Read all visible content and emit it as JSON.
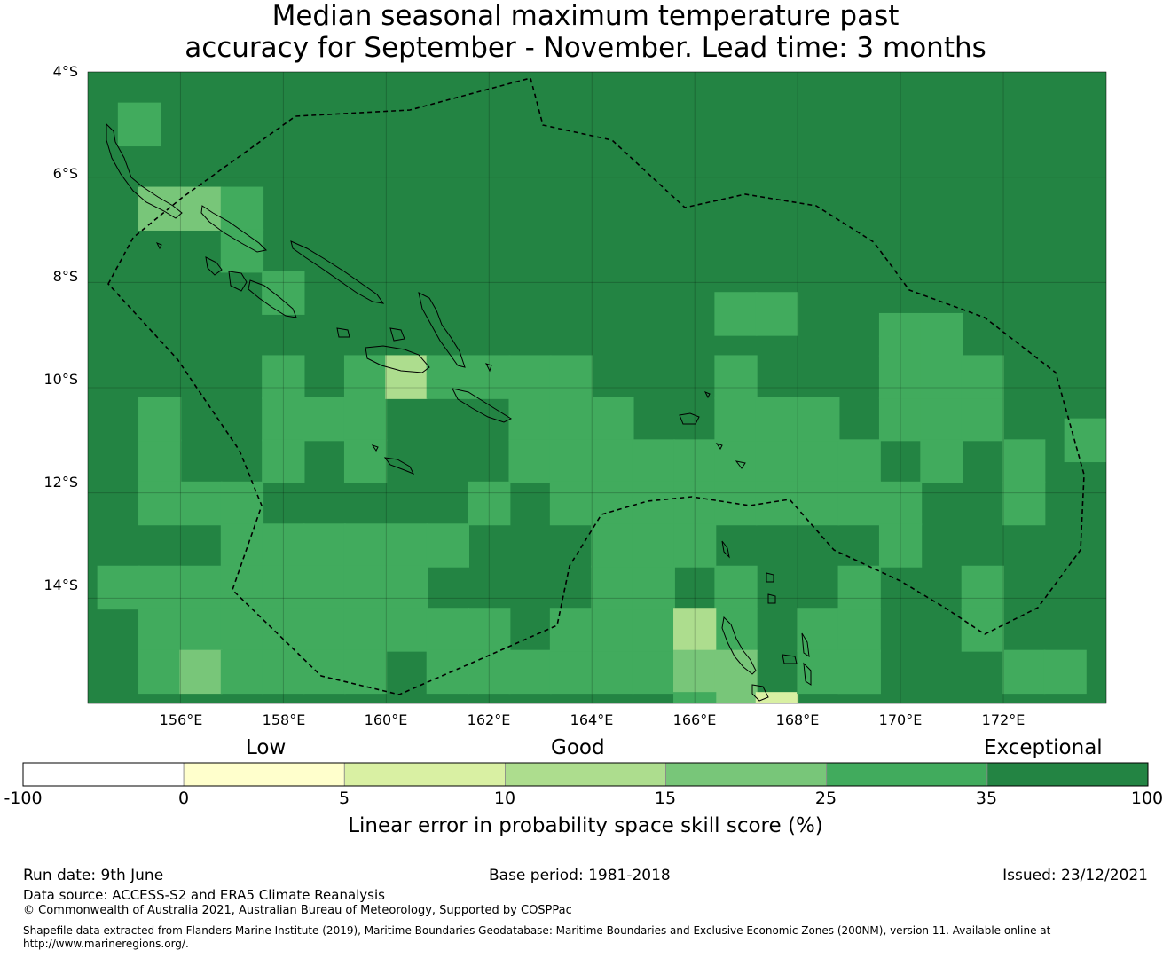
{
  "title": {
    "line1": "Median seasonal maximum temperature past",
    "line2": "accuracy for September - November. Lead time: 3 months"
  },
  "axes": {
    "lat_labels": [
      "4°S",
      "6°S",
      "8°S",
      "10°S",
      "12°S",
      "14°S"
    ],
    "lon_labels": [
      "156°E",
      "158°E",
      "160°E",
      "162°E",
      "164°E",
      "166°E",
      "168°E",
      "170°E",
      "172°E"
    ]
  },
  "colorbar": {
    "categories": [
      "Low",
      "Good",
      "Exceptional"
    ],
    "ticks": [
      "-100",
      "0",
      "5",
      "10",
      "15",
      "25",
      "35",
      "100"
    ],
    "colors": [
      "#ffffff",
      "#ffffcc",
      "#d9f0a3",
      "#addd8e",
      "#78c679",
      "#41ab5d",
      "#238443"
    ],
    "title": "Linear error in probability space skill score (%)"
  },
  "footer": {
    "run_date": "Run date: 9th June",
    "base_period": "Base period: 1981-2018",
    "issued": "Issued: 23/12/2021",
    "data_source": "Data source: ACCESS-S2 and ERA5 Climate Reanalysis",
    "copyright": "© Commonwealth of Australia 2021, Australian Bureau of Meteorology, Supported by COSPPac",
    "shapefile_1": "Shapefile data extracted from Flanders Marine Institute (2019), Maritime Boundaries Geodatabase: Maritime Boundaries and Exclusive Economic Zones (200NM), version 11. Available online at",
    "shapefile_2": "http://www.marineregions.org/."
  },
  "map_data": {
    "bounds": {
      "lon_min": 154.2,
      "lon_max": 174.0,
      "lat_min": -16.0,
      "lat_max": -4.0
    },
    "cell_size_deg": 0.833,
    "base_class": 6,
    "cells": [
      [
        155.2,
        -5.0,
        5
      ],
      [
        155.6,
        -6.6,
        4
      ],
      [
        156.4,
        -6.6,
        4
      ],
      [
        157.2,
        -6.6,
        5
      ],
      [
        157.2,
        -7.4,
        5
      ],
      [
        158.0,
        -8.2,
        5
      ],
      [
        158.0,
        -9.8,
        5
      ],
      [
        158.0,
        -10.6,
        5
      ],
      [
        158.0,
        -11.4,
        5
      ],
      [
        158.8,
        -10.6,
        5
      ],
      [
        159.6,
        -9.8,
        5
      ],
      [
        159.6,
        -10.6,
        5
      ],
      [
        159.6,
        -11.4,
        5
      ],
      [
        160.4,
        -9.8,
        3
      ],
      [
        161.2,
        -9.8,
        5
      ],
      [
        162.0,
        -9.8,
        5
      ],
      [
        162.8,
        -9.8,
        5
      ],
      [
        163.6,
        -9.8,
        5
      ],
      [
        162.8,
        -10.6,
        5
      ],
      [
        163.6,
        -10.6,
        5
      ],
      [
        164.4,
        -10.6,
        5
      ],
      [
        162.8,
        -11.4,
        5
      ],
      [
        163.6,
        -11.4,
        5
      ],
      [
        164.4,
        -11.4,
        5
      ],
      [
        165.2,
        -11.4,
        5
      ],
      [
        166.0,
        -11.4,
        5
      ],
      [
        166.8,
        -11.4,
        5
      ],
      [
        167.6,
        -11.4,
        5
      ],
      [
        168.4,
        -11.4,
        5
      ],
      [
        169.2,
        -11.4,
        5
      ],
      [
        163.6,
        -12.2,
        5
      ],
      [
        164.4,
        -12.2,
        5
      ],
      [
        165.2,
        -12.2,
        5
      ],
      [
        166.0,
        -12.2,
        5
      ],
      [
        166.8,
        -12.2,
        5
      ],
      [
        167.6,
        -12.2,
        5
      ],
      [
        168.4,
        -12.2,
        5
      ],
      [
        169.2,
        -12.2,
        5
      ],
      [
        170.0,
        -12.2,
        5
      ],
      [
        155.6,
        -11.4,
        5
      ],
      [
        155.6,
        -12.2,
        5
      ],
      [
        155.6,
        -10.6,
        5
      ],
      [
        156.4,
        -12.2,
        5
      ],
      [
        157.2,
        -12.2,
        5
      ],
      [
        157.2,
        -13.0,
        5
      ],
      [
        158.0,
        -13.0,
        5
      ],
      [
        158.8,
        -13.0,
        5
      ],
      [
        159.6,
        -13.0,
        5
      ],
      [
        160.4,
        -13.0,
        5
      ],
      [
        161.2,
        -13.0,
        5
      ],
      [
        162.0,
        -12.2,
        5
      ],
      [
        154.8,
        -13.8,
        5
      ],
      [
        155.6,
        -13.8,
        5
      ],
      [
        156.4,
        -13.8,
        5
      ],
      [
        157.2,
        -13.8,
        5
      ],
      [
        158.0,
        -13.8,
        5
      ],
      [
        158.8,
        -13.8,
        5
      ],
      [
        159.6,
        -13.8,
        5
      ],
      [
        160.4,
        -13.8,
        5
      ],
      [
        155.6,
        -14.6,
        5
      ],
      [
        156.4,
        -14.6,
        5
      ],
      [
        157.2,
        -14.6,
        5
      ],
      [
        158.0,
        -14.6,
        5
      ],
      [
        158.8,
        -14.6,
        5
      ],
      [
        159.6,
        -14.6,
        5
      ],
      [
        160.4,
        -14.6,
        5
      ],
      [
        161.2,
        -14.6,
        5
      ],
      [
        162.0,
        -14.6,
        5
      ],
      [
        155.6,
        -15.4,
        5
      ],
      [
        156.4,
        -15.4,
        4
      ],
      [
        157.2,
        -15.4,
        5
      ],
      [
        158.0,
        -15.4,
        5
      ],
      [
        158.8,
        -15.4,
        5
      ],
      [
        159.6,
        -15.4,
        5
      ],
      [
        161.2,
        -15.4,
        5
      ],
      [
        162.0,
        -15.4,
        5
      ],
      [
        162.8,
        -15.4,
        5
      ],
      [
        163.6,
        -15.4,
        5
      ],
      [
        164.4,
        -15.4,
        5
      ],
      [
        165.2,
        -15.4,
        5
      ],
      [
        163.6,
        -14.6,
        5
      ],
      [
        164.4,
        -14.6,
        5
      ],
      [
        165.2,
        -14.6,
        5
      ],
      [
        164.4,
        -13.8,
        5
      ],
      [
        165.2,
        -13.8,
        5
      ],
      [
        164.4,
        -13.0,
        5
      ],
      [
        165.2,
        -13.0,
        5
      ],
      [
        166.0,
        -13.0,
        5
      ],
      [
        166.8,
        -13.8,
        5
      ],
      [
        166.8,
        -14.6,
        5
      ],
      [
        166.0,
        -14.6,
        3
      ],
      [
        166.0,
        -15.4,
        4
      ],
      [
        166.8,
        -15.4,
        4
      ],
      [
        166.8,
        -16.2,
        4
      ],
      [
        167.6,
        -16.2,
        2
      ],
      [
        166.0,
        -16.2,
        5
      ],
      [
        168.4,
        -14.6,
        5
      ],
      [
        169.2,
        -14.6,
        5
      ],
      [
        169.2,
        -15.4,
        5
      ],
      [
        170.0,
        -13.0,
        5
      ],
      [
        171.6,
        -13.8,
        5
      ],
      [
        171.6,
        -14.6,
        5
      ],
      [
        172.4,
        -15.4,
        5
      ],
      [
        173.2,
        -15.4,
        5
      ],
      [
        173.6,
        -11.0,
        5
      ],
      [
        170.0,
        -10.6,
        5
      ],
      [
        170.8,
        -10.6,
        5
      ],
      [
        171.6,
        -10.6,
        5
      ],
      [
        170.0,
        -9.8,
        5
      ],
      [
        170.8,
        -9.8,
        5
      ],
      [
        171.6,
        -9.8,
        5
      ],
      [
        170.0,
        -9.0,
        5
      ],
      [
        170.8,
        -9.0,
        5
      ],
      [
        166.8,
        -8.6,
        5
      ],
      [
        167.6,
        -8.6,
        5
      ],
      [
        166.8,
        -9.8,
        5
      ],
      [
        166.8,
        -10.6,
        5
      ],
      [
        167.6,
        -10.6,
        5
      ],
      [
        168.4,
        -10.6,
        5
      ],
      [
        172.4,
        -12.2,
        5
      ],
      [
        170.8,
        -11.4,
        5
      ],
      [
        172.4,
        -11.4,
        5
      ],
      [
        169.2,
        -13.8,
        5
      ],
      [
        169.2,
        -15.4,
        5
      ],
      [
        168.4,
        -15.4,
        5
      ]
    ]
  }
}
